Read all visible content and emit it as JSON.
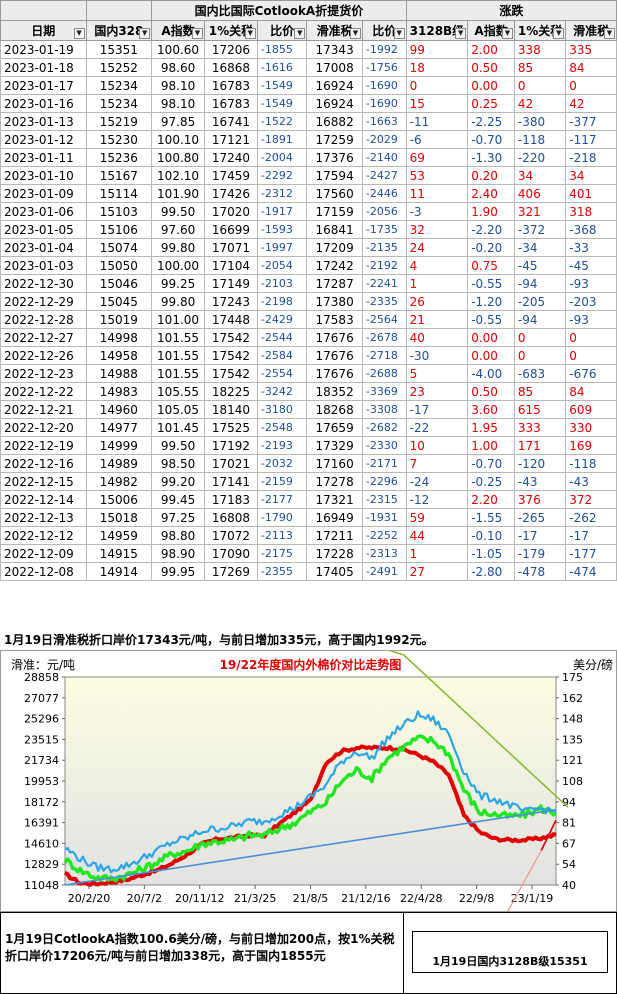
{
  "table": {
    "group_headers": {
      "domestic_vs_cotlook": "国内比国际CotlookA折提货价",
      "change": "涨跌"
    },
    "columns": [
      "日期",
      "国内328",
      "A指数",
      "1%关税",
      "比价",
      "滑准税",
      "比价",
      "3128B级",
      "A指数",
      "1%关税",
      "滑准税"
    ],
    "rows": [
      [
        "2023-01-19",
        "15351",
        "100.60",
        "17206",
        "-1855",
        "17343",
        "-1992",
        "99",
        "2.00",
        "338",
        "335"
      ],
      [
        "2023-01-18",
        "15252",
        "98.60",
        "16868",
        "-1616",
        "17008",
        "-1756",
        "18",
        "0.50",
        "85",
        "84"
      ],
      [
        "2023-01-17",
        "15234",
        "98.10",
        "16783",
        "-1549",
        "16924",
        "-1690",
        "0",
        "0.00",
        "0",
        "0"
      ],
      [
        "2023-01-16",
        "15234",
        "98.10",
        "16783",
        "-1549",
        "16924",
        "-1690",
        "15",
        "0.25",
        "42",
        "42"
      ],
      [
        "2023-01-13",
        "15219",
        "97.85",
        "16741",
        "-1522",
        "16882",
        "-1663",
        "-11",
        "-2.25",
        "-380",
        "-377"
      ],
      [
        "2023-01-12",
        "15230",
        "100.10",
        "17121",
        "-1891",
        "17259",
        "-2029",
        "-6",
        "-0.70",
        "-118",
        "-117"
      ],
      [
        "2023-01-11",
        "15236",
        "100.80",
        "17240",
        "-2004",
        "17376",
        "-2140",
        "69",
        "-1.30",
        "-220",
        "-218"
      ],
      [
        "2023-01-10",
        "15167",
        "102.10",
        "17459",
        "-2292",
        "17594",
        "-2427",
        "53",
        "0.20",
        "34",
        "34"
      ],
      [
        "2023-01-09",
        "15114",
        "101.90",
        "17426",
        "-2312",
        "17560",
        "-2446",
        "11",
        "2.40",
        "406",
        "401"
      ],
      [
        "2023-01-06",
        "15103",
        "99.50",
        "17020",
        "-1917",
        "17159",
        "-2056",
        "-3",
        "1.90",
        "321",
        "318"
      ],
      [
        "2023-01-05",
        "15106",
        "97.60",
        "16699",
        "-1593",
        "16841",
        "-1735",
        "32",
        "-2.20",
        "-372",
        "-368"
      ],
      [
        "2023-01-04",
        "15074",
        "99.80",
        "17071",
        "-1997",
        "17209",
        "-2135",
        "24",
        "-0.20",
        "-34",
        "-33"
      ],
      [
        "2023-01-03",
        "15050",
        "100.00",
        "17104",
        "-2054",
        "17242",
        "-2192",
        "4",
        "0.75",
        "-45",
        "-45"
      ],
      [
        "2022-12-30",
        "15046",
        "99.25",
        "17149",
        "-2103",
        "17287",
        "-2241",
        "1",
        "-0.55",
        "-94",
        "-93"
      ],
      [
        "2022-12-29",
        "15045",
        "99.80",
        "17243",
        "-2198",
        "17380",
        "-2335",
        "26",
        "-1.20",
        "-205",
        "-203"
      ],
      [
        "2022-12-28",
        "15019",
        "101.00",
        "17448",
        "-2429",
        "17583",
        "-2564",
        "21",
        "-0.55",
        "-94",
        "-93"
      ],
      [
        "2022-12-27",
        "14998",
        "101.55",
        "17542",
        "-2544",
        "17676",
        "-2678",
        "40",
        "0.00",
        "0",
        "0"
      ],
      [
        "2022-12-26",
        "14958",
        "101.55",
        "17542",
        "-2584",
        "17676",
        "-2718",
        "-30",
        "0.00",
        "0",
        "0"
      ],
      [
        "2022-12-23",
        "14988",
        "101.55",
        "17542",
        "-2554",
        "17676",
        "-2688",
        "5",
        "-4.00",
        "-683",
        "-676"
      ],
      [
        "2022-12-22",
        "14983",
        "105.55",
        "18225",
        "-3242",
        "18352",
        "-3369",
        "23",
        "0.50",
        "85",
        "84"
      ],
      [
        "2022-12-21",
        "14960",
        "105.05",
        "18140",
        "-3180",
        "18268",
        "-3308",
        "-17",
        "3.60",
        "615",
        "609"
      ],
      [
        "2022-12-20",
        "14977",
        "101.45",
        "17525",
        "-2548",
        "17659",
        "-2682",
        "-22",
        "1.95",
        "333",
        "330"
      ],
      [
        "2022-12-19",
        "14999",
        "99.50",
        "17192",
        "-2193",
        "17329",
        "-2330",
        "10",
        "1.00",
        "171",
        "169"
      ],
      [
        "2022-12-16",
        "14989",
        "98.50",
        "17021",
        "-2032",
        "17160",
        "-2171",
        "7",
        "-0.70",
        "-120",
        "-118"
      ],
      [
        "2022-12-15",
        "14982",
        "99.20",
        "17141",
        "-2159",
        "17278",
        "-2296",
        "-24",
        "-0.25",
        "-43",
        "-43"
      ],
      [
        "2022-12-14",
        "15006",
        "99.45",
        "17183",
        "-2177",
        "17321",
        "-2315",
        "-12",
        "2.20",
        "376",
        "372"
      ],
      [
        "2022-12-13",
        "15018",
        "97.25",
        "16808",
        "-1790",
        "16949",
        "-1931",
        "59",
        "-1.55",
        "-265",
        "-262"
      ],
      [
        "2022-12-12",
        "14959",
        "98.80",
        "17072",
        "-2113",
        "17211",
        "-2252",
        "44",
        "-0.10",
        "-17",
        "-17"
      ],
      [
        "2022-12-09",
        "14915",
        "98.90",
        "17090",
        "-2175",
        "17228",
        "-2313",
        "1",
        "-1.05",
        "-179",
        "-177"
      ],
      [
        "2022-12-08",
        "14914",
        "99.95",
        "17269",
        "-2355",
        "17405",
        "-2491",
        "27",
        "-2.80",
        "-478",
        "-474"
      ]
    ]
  },
  "note_top": "1月19日滑准税折口岸价17343元/吨，与前日增加335元，高于国内1992元。",
  "note_bottom_left": "1月19日CotlookA指数100.6美分/磅，与前日增加200点，按1%关税折口岸价17206元/吨与前日增加338元，高于国内1855元",
  "note_bottom_right": "1月19日国内3128B级15351",
  "colors": {
    "red": "#e00000",
    "green": "#22e622",
    "blue": "#2aa6e6",
    "trend_green": "#8ab834",
    "trend_blue": "#4a8ed8",
    "plot_bg_top": "#fdfde2",
    "plot_bg_bottom": "#e2e2e2"
  },
  "chart_data": {
    "type": "line",
    "title": "19/22年度国内外棉价对比走势图",
    "left_axis_label": "滑准：元/吨",
    "right_axis_label": "美分/磅",
    "x_tick_labels": [
      "20/2/20",
      "20/7/2",
      "20/11/12",
      "21/3/25",
      "21/8/5",
      "21/12/16",
      "22/4/28",
      "22/9/8",
      "23/1/19"
    ],
    "y_left_ticks": [
      "28858",
      "27077",
      "25296",
      "23515",
      "21734",
      "19953",
      "18172",
      "16391",
      "14610",
      "12829",
      "11048"
    ],
    "y_right_ticks": [
      "175",
      "162",
      "148",
      "135",
      "121",
      "108",
      "94",
      "81",
      "67",
      "54",
      "40"
    ],
    "ylim_left": [
      11048,
      28858
    ],
    "ylim_right": [
      40,
      175
    ],
    "series": [
      {
        "color": "red",
        "values": [
          12000,
          11200,
          11150,
          11300,
          11500,
          11900,
          12300,
          12900,
          13700,
          14600,
          15000,
          15100,
          15300,
          15300,
          16300,
          17300,
          18300,
          21500,
          22500,
          22800,
          22800,
          22800,
          22700,
          22200,
          21600,
          20500,
          17000,
          15600,
          15000,
          14900,
          14900,
          15050,
          15351
        ]
      },
      {
        "color": "green",
        "values": [
          13200,
          12300,
          11700,
          11600,
          11900,
          12400,
          13000,
          13700,
          14000,
          14600,
          14800,
          14900,
          15300,
          15300,
          15900,
          16400,
          17300,
          18100,
          19900,
          20900,
          20200,
          21900,
          22800,
          23600,
          23400,
          22300,
          19200,
          17300,
          17100,
          16900,
          17100,
          17600,
          17206
        ]
      },
      {
        "color": "blue",
        "values": [
          14200,
          13300,
          12600,
          12400,
          12700,
          13300,
          14000,
          14700,
          15100,
          15700,
          15900,
          16100,
          16500,
          16500,
          17100,
          17700,
          18600,
          19600,
          21600,
          22500,
          21900,
          23600,
          24700,
          25600,
          25200,
          24000,
          20800,
          18700,
          18400,
          17900,
          17300,
          17600,
          17343
        ]
      }
    ],
    "trend_lines": [
      {
        "color": "trend_green",
        "from": [
          0.69,
          28858
        ],
        "to": [
          1.0,
          17700
        ]
      },
      {
        "color": "trend_blue",
        "from": [
          0.0,
          11048
        ],
        "to": [
          1.0,
          17500
        ]
      },
      {
        "color": "red",
        "from": [
          0.97,
          14000
        ],
        "to": [
          1.0,
          16600
        ]
      }
    ]
  }
}
